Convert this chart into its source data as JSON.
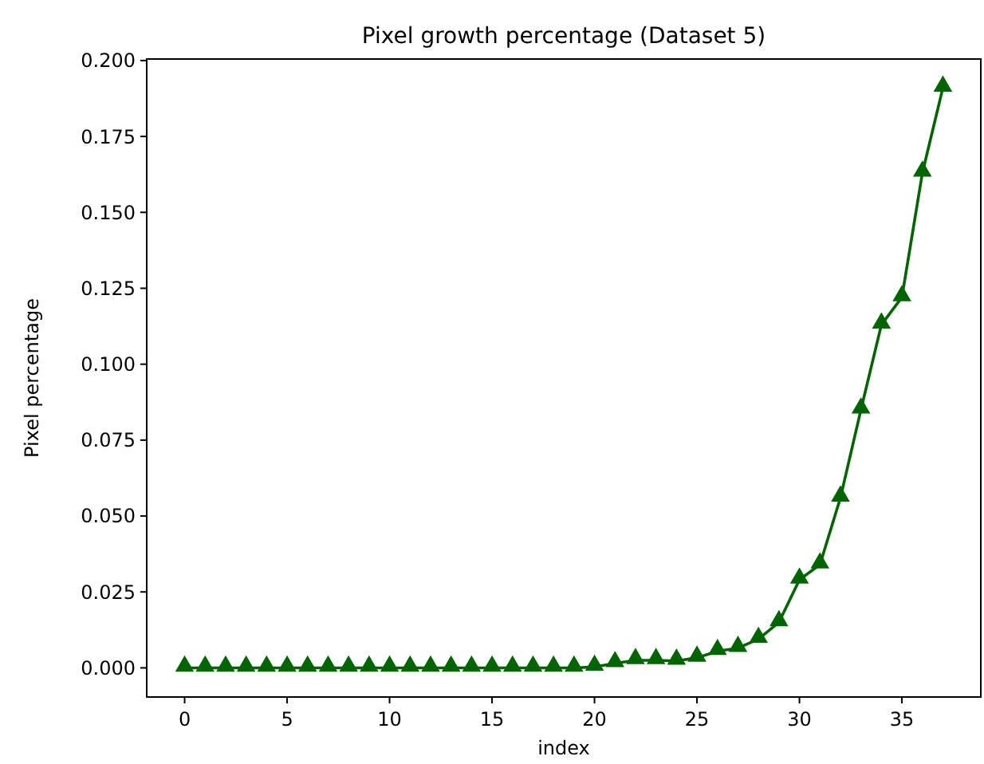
{
  "chart_data": {
    "type": "line",
    "title": "Pixel growth percentage (Dataset 5)",
    "xlabel": "index",
    "ylabel": "Pixel percentage",
    "x": [
      0,
      1,
      2,
      3,
      4,
      5,
      6,
      7,
      8,
      9,
      10,
      11,
      12,
      13,
      14,
      15,
      16,
      17,
      18,
      19,
      20,
      21,
      22,
      23,
      24,
      25,
      26,
      27,
      28,
      29,
      30,
      31,
      32,
      33,
      34,
      35,
      36,
      37
    ],
    "series": [
      {
        "color": "#006400",
        "values": [
          0,
          0,
          0,
          0,
          0,
          0,
          0,
          0,
          0,
          0,
          0,
          0,
          0,
          0,
          0,
          0,
          0,
          0,
          0,
          0,
          0.0003,
          0.0015,
          0.0025,
          0.0025,
          0.0023,
          0.0033,
          0.0055,
          0.0065,
          0.0095,
          0.015,
          0.029,
          0.034,
          0.056,
          0.085,
          0.113,
          0.122,
          0.163,
          0.191
        ]
      }
    ],
    "xlim": [
      -1.85,
      38.85
    ],
    "xticks": [
      0,
      5,
      10,
      15,
      20,
      25,
      30,
      35
    ],
    "ylim": [
      -0.0096,
      0.2005
    ],
    "yticks": [
      {
        "value": 0,
        "label": "0.000"
      },
      {
        "value": 0.025,
        "label": "0.025"
      },
      {
        "value": 0.05,
        "label": "0.050"
      },
      {
        "value": 0.075,
        "label": "0.075"
      },
      {
        "value": 0.1,
        "label": "0.100"
      },
      {
        "value": 0.125,
        "label": "0.125"
      },
      {
        "value": 0.15,
        "label": "0.150"
      },
      {
        "value": 0.175,
        "label": "0.175"
      },
      {
        "value": 0.2,
        "label": "0.200"
      }
    ],
    "marker": "triangle",
    "line_style": "solid"
  }
}
